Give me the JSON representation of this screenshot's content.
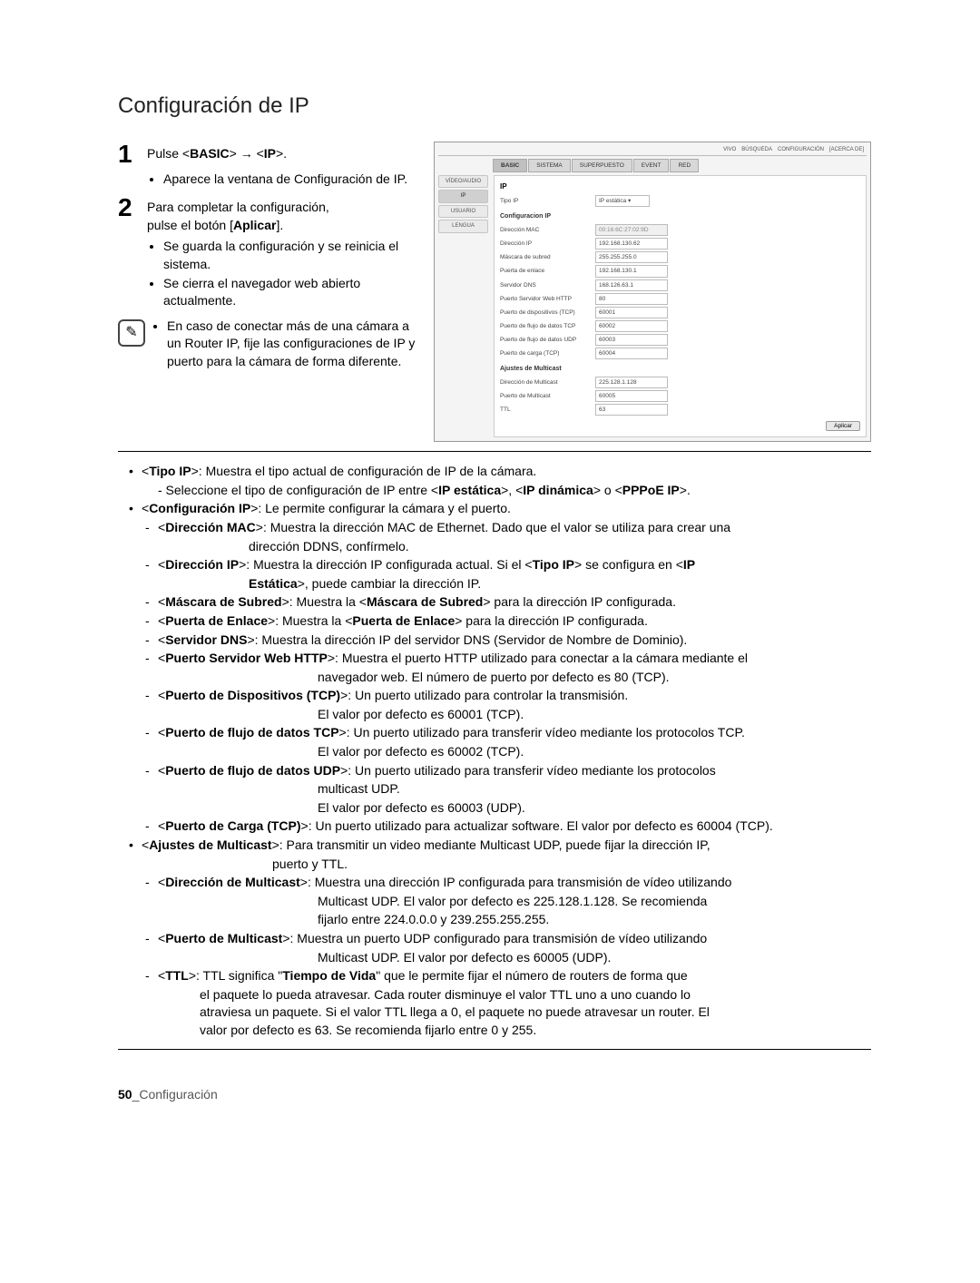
{
  "page": {
    "title": "Configuración de IP",
    "footer_num": "50",
    "footer_text": "_Configuración"
  },
  "steps": {
    "s1": {
      "num": "1",
      "text_pre": "Pulse <",
      "k1": "BASIC",
      "mid": "> → <",
      "k2": "IP",
      "text_post": ">.",
      "bullet1": "Aparece la ventana de Configuración de IP."
    },
    "s2": {
      "num": "2",
      "line1": "Para completar la configuración,",
      "line2_pre": "pulse el botón [",
      "line2_k": "Aplicar",
      "line2_post": "].",
      "b1": "Se guarda la configuración y se reinicia el sistema.",
      "b2": "Se cierra el navegador web abierto actualmente."
    },
    "note": "En caso de conectar más de una cámara a un Router IP, fije las configuraciones de IP y puerto para la cámara de forma diferente."
  },
  "ss": {
    "topbar": [
      "VIVO",
      "BÚSQUEDA",
      "CONFIGURACIÓN",
      "[ACERCA DE]"
    ],
    "tabs": [
      "BASIC",
      "SISTEMA",
      "SUPERPUESTO",
      "EVENT",
      "RED"
    ],
    "sidebar": [
      "VÍDEO/AUDIO",
      "IP",
      "USUARIO",
      "LENGUA"
    ],
    "title": "IP",
    "tipoip_label": "Tipo IP",
    "tipoip_value": "IP estática",
    "conf_h": "Configuracion IP",
    "rows": [
      {
        "l": "Dirección MAC",
        "v": "00:16:6C:27:02:9D",
        "ro": true
      },
      {
        "l": "Dirección IP",
        "v": "192.168.130.62"
      },
      {
        "l": "Máscara de subred",
        "v": "255.255.255.0"
      },
      {
        "l": "Puerta de enlace",
        "v": "192.168.130.1"
      },
      {
        "l": "Servidor DNS",
        "v": "168.126.63.1"
      },
      {
        "l": "Puerto Servidor Web HTTP",
        "v": "80"
      },
      {
        "l": "Puerto de dispositivos (TCP)",
        "v": "60001"
      },
      {
        "l": "Puerto de flujo de datos TCP",
        "v": "60002"
      },
      {
        "l": "Puerto de flujo de datos UDP",
        "v": "60003"
      },
      {
        "l": "Puerto de carga (TCP)",
        "v": "60004"
      }
    ],
    "mc_h": "Ajustes de Multicast",
    "mc_rows": [
      {
        "l": "Dirección de Multicast",
        "v": "225.128.1.128"
      },
      {
        "l": "Puerto de Multicast",
        "v": "60005"
      },
      {
        "l": "TTL",
        "v": "63"
      }
    ],
    "apply": "Aplicar"
  },
  "defs": {
    "tipoip_head": "Tipo IP",
    "tipoip_text": ">: Muestra el tipo actual de configuración de IP de la cámara.",
    "tipoip_sub": "- Seleccione el tipo de configuración de IP entre <",
    "tipoip_k1": "IP estática",
    "tipoip_mid1": ">, <",
    "tipoip_k2": "IP dinámica",
    "tipoip_mid2": "> o <",
    "tipoip_k3": "PPPoE IP",
    "tipoip_end": ">.",
    "confip_head": "Configuración IP",
    "confip_text": ">: Le permite configurar la cámara y el puerto.",
    "mac_k": "Dirección MAC",
    "mac_t": ">: Muestra la dirección MAC de Ethernet. Dado que el valor se utiliza para crear una",
    "mac_c": "dirección DDNS, confírmelo.",
    "dip_k": "Dirección IP",
    "dip_t": ">: Muestra la dirección IP configurada actual. Si el <",
    "dip_k2": "Tipo IP",
    "dip_t2": "> se configura en <",
    "dip_k3": "IP",
    "dip_c_k": "Estática",
    "dip_c_t": ">, puede cambiar la dirección IP.",
    "mask_k": "Máscara de Subred",
    "mask_t": ">: Muestra la <",
    "mask_k2": "Máscara de Subred",
    "mask_t2": "> para la dirección IP configurada.",
    "gw_k": "Puerta de Enlace",
    "gw_t": ">: Muestra la <",
    "gw_k2": "Puerta de Enlace",
    "gw_t2": "> para la dirección IP configurada.",
    "dns_k": "Servidor DNS",
    "dns_t": ">: Muestra la dirección IP del servidor DNS (Servidor de Nombre de Dominio).",
    "http_k": "Puerto Servidor Web HTTP",
    "http_t": ">: Muestra el puerto HTTP utilizado para conectar a la cámara mediante el",
    "http_c": "navegador web. El número de puerto por defecto es 80 (TCP).",
    "dev_k": "Puerto de Dispositivos (TCP)",
    "dev_t": ">: Un puerto utilizado para controlar la transmisión.",
    "dev_c": "El valor por defecto es 60001 (TCP).",
    "tcp_k": "Puerto de flujo de datos TCP",
    "tcp_t": ">: Un puerto utilizado para transferir vídeo mediante los protocolos TCP.",
    "tcp_c": "El valor por defecto es 60002 (TCP).",
    "udp_k": "Puerto de flujo de datos UDP",
    "udp_t": ">: Un puerto utilizado para transferir vídeo mediante los protocolos",
    "udp_c1": "multicast UDP.",
    "udp_c2": "El valor por defecto es 60003 (UDP).",
    "upl_k": "Puerto de Carga (TCP)",
    "upl_t": ">: Un puerto utilizado para actualizar software. El valor por defecto es 60004 (TCP).",
    "mc_head": "Ajustes de Multicast",
    "mc_text": ">: Para transmitir un video mediante Multicast UDP, puede fijar la dirección IP,",
    "mc_c": "puerto y TTL.",
    "mcd_k": "Dirección de Multicast",
    "mcd_t": ">: Muestra una dirección IP configurada para transmisión de vídeo utilizando",
    "mcd_c1": "Multicast UDP. El valor por defecto es 225.128.1.128. Se recomienda",
    "mcd_c2": "fijarlo entre 224.0.0.0 y 239.255.255.255.",
    "mcp_k": "Puerto de Multicast",
    "mcp_t": ">: Muestra un puerto UDP configurado para transmisión de vídeo utilizando",
    "mcp_c": "Multicast UDP. El valor por defecto es 60005 (UDP).",
    "ttl_k": "TTL",
    "ttl_t1": ">: TTL significa \"",
    "ttl_k2": "Tiempo de Vida",
    "ttl_t2": "\" que le permite fijar el número de routers de forma que",
    "ttl_c1": "el paquete lo pueda atravesar. Cada router disminuye el valor TTL uno a uno cuando lo",
    "ttl_c2": "atraviesa un paquete. Si el valor TTL llega a 0, el paquete no puede atravesar un router. El",
    "ttl_c3": "valor por defecto es 63. Se recomienda fijarlo entre 0 y 255."
  }
}
